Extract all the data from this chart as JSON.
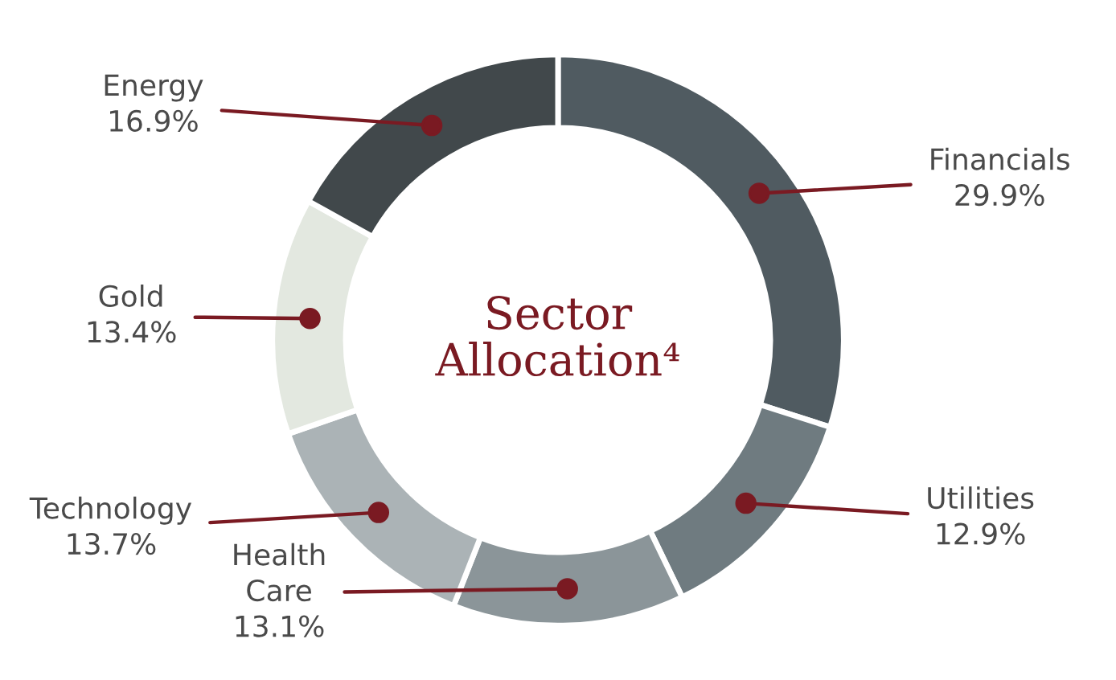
{
  "chart_data": {
    "type": "donut",
    "title": "Sector\nAllocation⁴",
    "categories": [
      "Financials",
      "Utilities",
      "Health\nCare",
      "Technology",
      "Gold",
      "Energy"
    ],
    "values": [
      29.9,
      12.9,
      13.1,
      13.7,
      13.4,
      16.9
    ],
    "colors": [
      "#505b61",
      "#6f7b80",
      "#8b9599",
      "#abb3b6",
      "#e3e8e0",
      "#41484b"
    ],
    "value_labels": [
      "29.9%",
      "12.9%",
      "13.1%",
      "13.7%",
      "13.4%",
      "16.9%"
    ]
  }
}
